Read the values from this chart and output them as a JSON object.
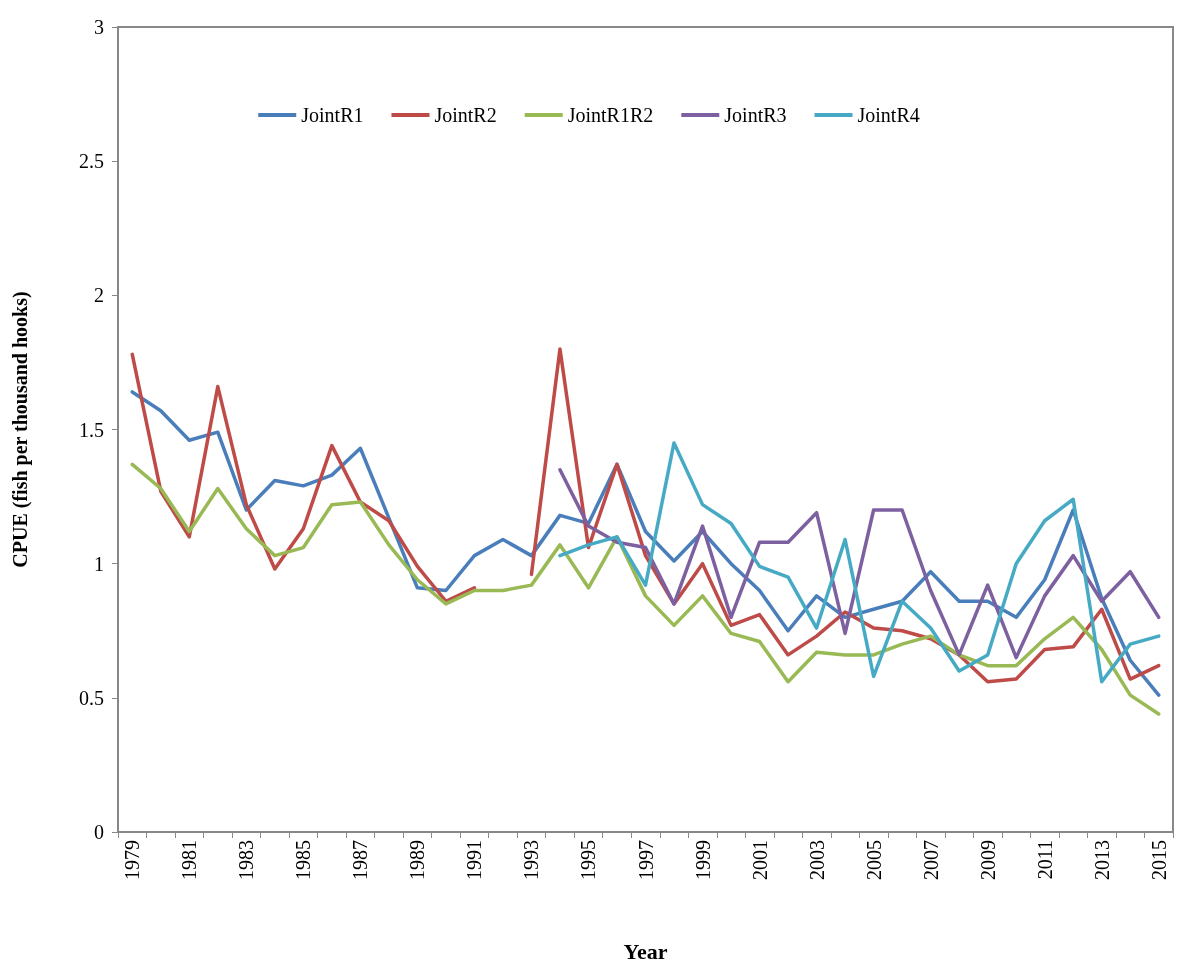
{
  "chart_data": {
    "type": "line",
    "xlabel": "Year",
    "ylabel": "CPUE (fish per thousand hooks)",
    "categories": [
      "1979",
      null,
      "1981",
      null,
      "1983",
      null,
      "1985",
      null,
      "1987",
      null,
      "1989",
      null,
      "1991",
      null,
      "1993",
      null,
      "1995",
      null,
      "1997",
      null,
      "1999",
      null,
      "2001",
      null,
      "2003",
      null,
      "2005",
      null,
      "2007",
      null,
      "2009",
      null,
      "2011",
      null,
      "2013",
      null,
      "2015"
    ],
    "series": [
      {
        "name": "JointR1",
        "color": "#4a7ebb",
        "values": [
          1.64,
          1.57,
          1.46,
          1.49,
          1.2,
          1.31,
          1.29,
          1.33,
          1.43,
          1.17,
          0.91,
          0.9,
          1.03,
          1.09,
          1.03,
          1.18,
          1.15,
          1.37,
          1.12,
          1.01,
          1.12,
          1.0,
          0.9,
          0.75,
          0.88,
          0.8,
          0.83,
          0.86,
          0.97,
          0.86,
          0.86,
          0.8,
          0.94,
          1.2,
          0.87,
          0.64,
          0.51
        ]
      },
      {
        "name": "JointR2",
        "color": "#be4b48",
        "values": [
          1.78,
          1.27,
          1.1,
          1.66,
          1.22,
          0.98,
          1.13,
          1.44,
          1.23,
          1.16,
          0.99,
          0.86,
          0.91,
          null,
          0.96,
          1.8,
          1.06,
          1.37,
          1.03,
          0.85,
          1.0,
          0.77,
          0.81,
          0.66,
          0.73,
          0.82,
          0.76,
          0.75,
          0.72,
          0.66,
          0.56,
          0.57,
          0.68,
          0.69,
          0.83,
          0.57,
          0.62
        ]
      },
      {
        "name": "JointR1R2",
        "color": "#98b954",
        "values": [
          1.37,
          1.28,
          1.12,
          1.28,
          1.13,
          1.03,
          1.06,
          1.22,
          1.23,
          1.07,
          0.94,
          0.85,
          0.9,
          0.9,
          0.92,
          1.07,
          0.91,
          1.1,
          0.88,
          0.77,
          0.88,
          0.74,
          0.71,
          0.56,
          0.67,
          0.66,
          0.66,
          0.7,
          0.73,
          0.66,
          0.62,
          0.62,
          0.72,
          0.8,
          0.68,
          0.51,
          0.44
        ]
      },
      {
        "name": "JointR3",
        "color": "#7d60a0",
        "values": [
          null,
          null,
          null,
          null,
          null,
          null,
          null,
          null,
          null,
          null,
          null,
          null,
          null,
          null,
          null,
          1.35,
          1.14,
          1.08,
          1.06,
          0.85,
          1.14,
          0.8,
          1.08,
          1.08,
          1.19,
          0.74,
          1.2,
          1.2,
          0.9,
          0.66,
          0.92,
          0.65,
          0.88,
          1.03,
          0.86,
          0.97,
          0.8
        ]
      },
      {
        "name": "JointR4",
        "color": "#46aac5",
        "values": [
          null,
          null,
          null,
          null,
          null,
          null,
          null,
          null,
          null,
          null,
          null,
          null,
          null,
          null,
          null,
          1.03,
          1.07,
          1.1,
          0.92,
          1.45,
          1.22,
          1.15,
          0.99,
          0.95,
          0.76,
          1.09,
          0.58,
          0.86,
          0.76,
          0.6,
          0.66,
          1.0,
          1.16,
          1.24,
          0.56,
          0.7,
          0.73
        ]
      }
    ],
    "ylim": [
      0,
      3
    ],
    "yticks": [
      0,
      0.5,
      1,
      1.5,
      2,
      2.5,
      3
    ],
    "grid": false,
    "legend": "top",
    "marker": "none",
    "line_style": "solid"
  }
}
